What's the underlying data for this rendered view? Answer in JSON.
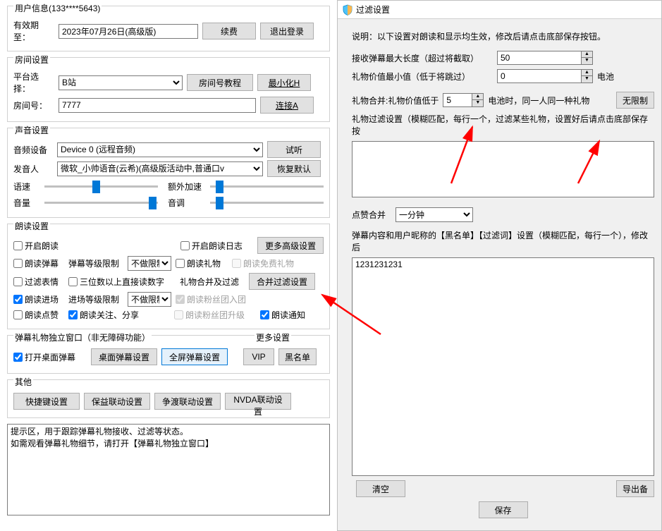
{
  "colors": {
    "accent": "#0078d7",
    "arrow": "#ff0000"
  },
  "user": {
    "group_title": "用户信息(133****5643)",
    "expiry_label": "有效期至：",
    "expiry_value": "2023年07月26日(高级版)",
    "renew_btn": "续费",
    "logout_btn": "退出登录"
  },
  "room": {
    "group_title": "房间设置",
    "platform_label": "平台选择：",
    "platform_value": "B站",
    "room_tutorial_btn": "房间号教程",
    "minimize_btn": "最小化H",
    "room_label": "房间号：",
    "room_value": "7777",
    "connect_btn": "连接A"
  },
  "sound": {
    "group_title": "声音设置",
    "device_label": "音频设备",
    "device_value": "Device 0 (远程音频)",
    "test_btn": "试听",
    "voice_label": "发音人",
    "voice_value": "微软_小帅语音(云希)(高级版活动中,普通口v",
    "restore_btn": "恢复默认",
    "speed_label": "语速",
    "extra_label": "额外加速",
    "volume_label": "音量",
    "pitch_label": "音调",
    "sliders": {
      "speed": 42,
      "extra": 5,
      "volume": 92,
      "pitch": 5
    }
  },
  "read": {
    "group_title": "朗读设置",
    "cb_start": "开启朗读",
    "cb_start_checked": false,
    "cb_log": "开启朗读日志",
    "cb_log_checked": false,
    "more_adv_btn": "更多高级设置",
    "cb_danmu": "朗读弹幕",
    "cb_danmu_checked": false,
    "lvl_limit_label": "弹幕等级限制",
    "lvl_limit_value": "不做限制",
    "cb_gift": "朗读礼物",
    "cb_gift_checked": false,
    "cb_free_gift": "朗读免费礼物",
    "cb_emoji": "过滤表情",
    "cb_emoji_checked": false,
    "cb_3digit": "三位数以上直接读数字",
    "cb_3digit_checked": false,
    "gift_merge_label": "礼物合并及过滤",
    "gift_merge_btn": "合并过滤设置",
    "cb_enter": "朗读进场",
    "cb_enter_checked": true,
    "enter_lvl_label": "进场等级限制",
    "enter_lvl_value": "不做限制",
    "cb_fans_join": "朗读粉丝团入团",
    "cb_fans_join_checked": true,
    "cb_like": "朗读点赞",
    "cb_like_checked": false,
    "cb_follow": "朗读关注、分享",
    "cb_follow_checked": true,
    "cb_fans_up": "朗读粉丝团升级",
    "cb_fans_up_checked": false,
    "cb_notify": "朗读通知",
    "cb_notify_checked": true
  },
  "dmwin": {
    "group_title": "弹幕礼物独立窗口（非无障碍功能）",
    "more_label": "更多设置",
    "cb_open": "打开桌面弹幕",
    "cb_open_checked": true,
    "desktop_btn": "桌面弹幕设置",
    "full_btn": "全屏弹幕设置",
    "vip_btn": "VIP",
    "black_btn": "黑名单"
  },
  "other": {
    "group_title": "其他",
    "hotkey_btn": "快捷键设置",
    "baoyi_btn": "保益联动设置",
    "zhengdu_btn": "争渡联动设置",
    "nvda_btn": "NVDA联动设置"
  },
  "tip": {
    "line1": "提示区，用于跟踪弹幕礼物接收、过滤等状态。",
    "line2": "如需观看弹幕礼物细节，请打开【弹幕礼物独立窗口】"
  },
  "right": {
    "title": "过滤设置",
    "note": "说明：以下设置对朗读和显示均生效，修改后请点击底部保存按钮。",
    "recv_label": "接收弹幕最大长度（超过将截取）",
    "recv_value": "50",
    "gift_val_label": "礼物价值最小值（低于将跳过）",
    "gift_val_value": "0",
    "gift_val_unit": "电池",
    "merge_prefix": "礼物合并:礼物价值低于",
    "merge_value": "5",
    "merge_suffix": "电池时，同一人同一种礼物",
    "merge_btn": "无限制",
    "gift_filter_label": "礼物过滤设置（模糊匹配，每行一个，过滤某些礼物，设置好后请点击底部保存按",
    "like_merge_label": "点赞合并",
    "like_merge_value": "一分钟",
    "black_label": "弹幕内容和用户昵称的【黑名单】【过滤词】设置（模糊匹配，每行一个），修改后",
    "black_value": "1231231231",
    "clear_btn": "清空",
    "export_btn": "导出备",
    "save_btn": "保存"
  }
}
